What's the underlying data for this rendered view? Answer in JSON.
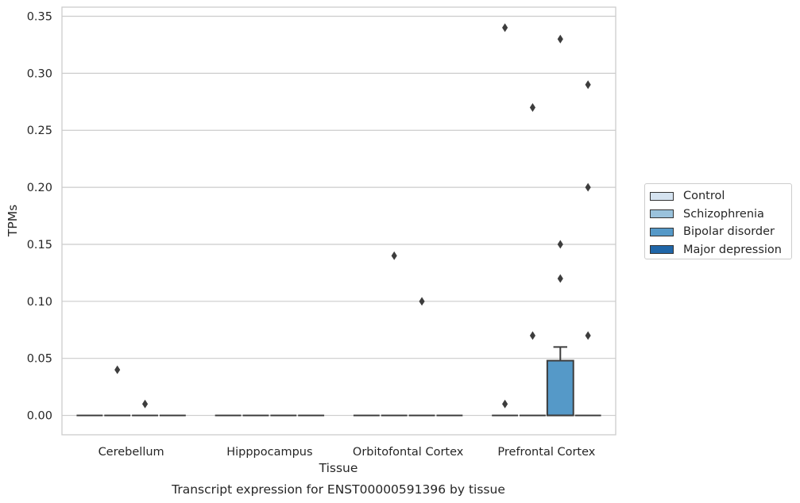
{
  "chart_data": {
    "type": "box",
    "title": "Transcript expression for ENST00000591396 by tissue",
    "xlabel": "Tissue",
    "ylabel": "TPMs",
    "ylim": [
      -0.017,
      0.358
    ],
    "yticks": [
      "0.00",
      "0.05",
      "0.10",
      "0.15",
      "0.20",
      "0.25",
      "0.30",
      "0.35"
    ],
    "ytick_values": [
      0.0,
      0.05,
      0.1,
      0.15,
      0.2,
      0.25,
      0.3,
      0.35
    ],
    "grid": true,
    "legend_position": "right",
    "categories": [
      "Cerebellum",
      "Hipppocampus",
      "Orbitofontal Cortex",
      "Prefrontal Cortex"
    ],
    "series": [
      {
        "name": "Control",
        "color": "#d5e3f0",
        "boxes": [
          {
            "q1": 0,
            "median": 0,
            "q3": 0,
            "whisker_low": 0,
            "whisker_high": 0,
            "outliers": []
          },
          {
            "q1": 0,
            "median": 0,
            "q3": 0,
            "whisker_low": 0,
            "whisker_high": 0,
            "outliers": []
          },
          {
            "q1": 0,
            "median": 0,
            "q3": 0,
            "whisker_low": 0,
            "whisker_high": 0,
            "outliers": []
          },
          {
            "q1": 0,
            "median": 0,
            "q3": 0,
            "whisker_low": 0,
            "whisker_high": 0,
            "outliers": [
              0.34,
              0.01
            ]
          }
        ]
      },
      {
        "name": "Schizophrenia",
        "color": "#9ac2dc",
        "boxes": [
          {
            "q1": 0,
            "median": 0,
            "q3": 0,
            "whisker_low": 0,
            "whisker_high": 0,
            "outliers": [
              0.04
            ]
          },
          {
            "q1": 0,
            "median": 0,
            "q3": 0,
            "whisker_low": 0,
            "whisker_high": 0,
            "outliers": []
          },
          {
            "q1": 0,
            "median": 0,
            "q3": 0,
            "whisker_low": 0,
            "whisker_high": 0,
            "outliers": [
              0.14
            ]
          },
          {
            "q1": 0,
            "median": 0,
            "q3": 0,
            "whisker_low": 0,
            "whisker_high": 0,
            "outliers": [
              0.27,
              0.07
            ]
          }
        ]
      },
      {
        "name": "Bipolar disorder",
        "color": "#5599c8",
        "boxes": [
          {
            "q1": 0,
            "median": 0,
            "q3": 0,
            "whisker_low": 0,
            "whisker_high": 0,
            "outliers": [
              0.01
            ]
          },
          {
            "q1": 0,
            "median": 0,
            "q3": 0,
            "whisker_low": 0,
            "whisker_high": 0,
            "outliers": []
          },
          {
            "q1": 0,
            "median": 0,
            "q3": 0,
            "whisker_low": 0,
            "whisker_high": 0,
            "outliers": [
              0.1
            ]
          },
          {
            "q1": 0,
            "median": 0,
            "q3": 0.048,
            "whisker_low": 0,
            "whisker_high": 0.06,
            "outliers": [
              0.33,
              0.15,
              0.12
            ]
          }
        ]
      },
      {
        "name": "Major depression",
        "color": "#2066a8",
        "boxes": [
          {
            "q1": 0,
            "median": 0,
            "q3": 0,
            "whisker_low": 0,
            "whisker_high": 0,
            "outliers": []
          },
          {
            "q1": 0,
            "median": 0,
            "q3": 0,
            "whisker_low": 0,
            "whisker_high": 0,
            "outliers": []
          },
          {
            "q1": 0,
            "median": 0,
            "q3": 0,
            "whisker_low": 0,
            "whisker_high": 0,
            "outliers": []
          },
          {
            "q1": 0,
            "median": 0,
            "q3": 0,
            "whisker_low": 0,
            "whisker_high": 0,
            "outliers": [
              0.29,
              0.2,
              0.07
            ]
          }
        ]
      }
    ]
  }
}
